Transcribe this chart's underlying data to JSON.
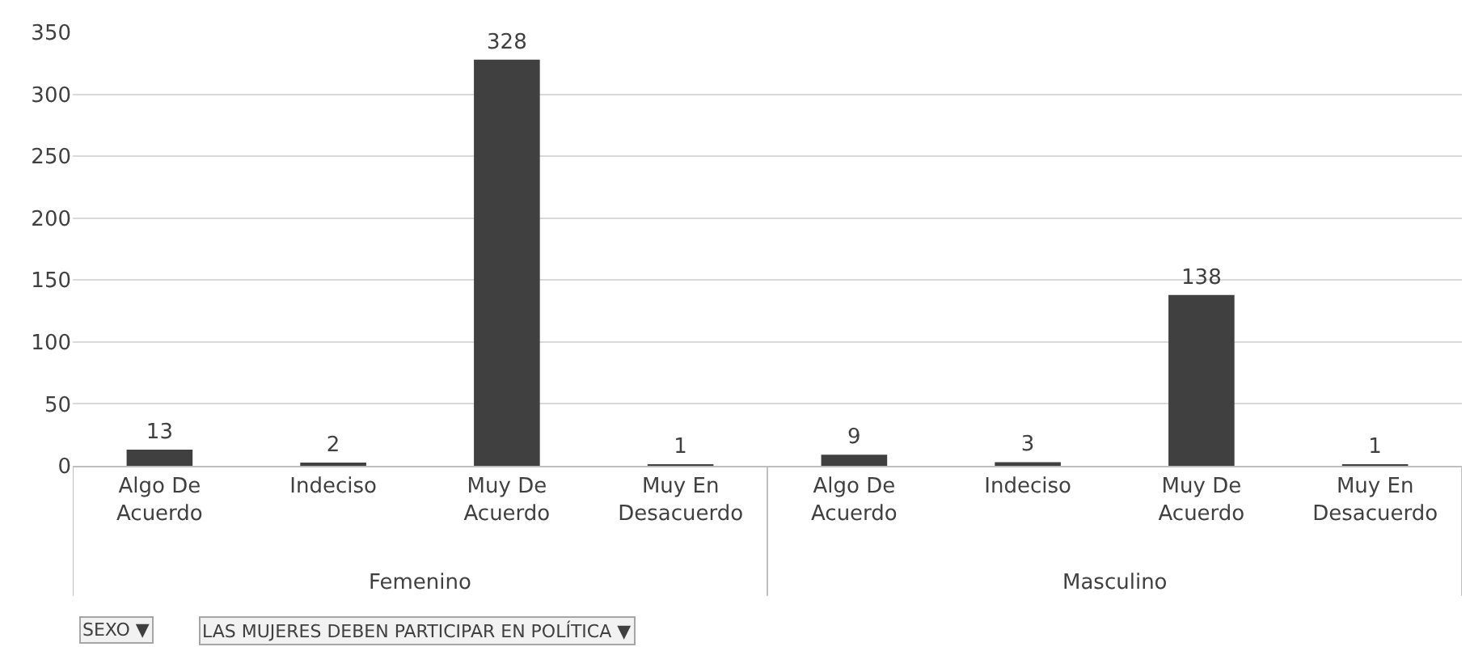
{
  "chart_data": {
    "type": "bar",
    "categories": [
      "Algo De Acuerdo",
      "Indeciso",
      "Muy De Acuerdo",
      "Muy En Desacuerdo",
      "Algo De Acuerdo",
      "Indeciso",
      "Muy De Acuerdo",
      "Muy En Desacuerdo"
    ],
    "values": [
      13,
      2,
      328,
      1,
      9,
      3,
      138,
      1
    ],
    "color": "#404040",
    "ylim": [
      0,
      350
    ],
    "yticks": [
      0,
      50,
      100,
      150,
      200,
      250,
      300,
      350
    ],
    "grid": "y",
    "data_labels": true,
    "legend": false,
    "annotations": [
      "Femenino",
      "Masculino",
      "SEXO ▼",
      "LAS MUJERES DEBEN PARTICIPAR EN POLÍTICA ▼"
    ]
  }
}
